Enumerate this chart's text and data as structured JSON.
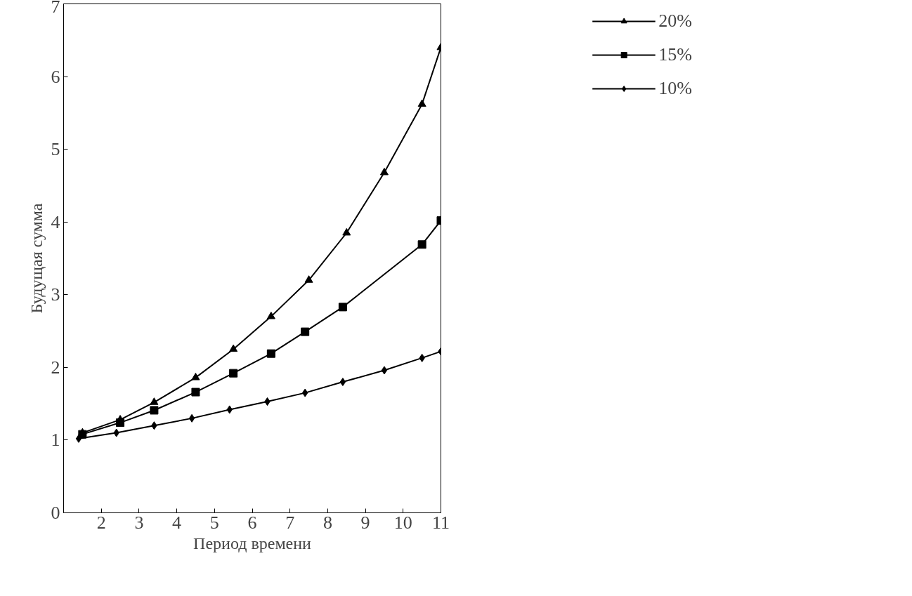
{
  "chart_data": {
    "type": "line",
    "xlabel": "Период времени",
    "ylabel": "Будущая сумма",
    "xlim": [
      1,
      11
    ],
    "ylim": [
      0,
      7
    ],
    "xticks": [
      2,
      3,
      4,
      5,
      6,
      7,
      8,
      9,
      10,
      11
    ],
    "yticks": [
      0,
      1,
      2,
      3,
      4,
      5,
      6,
      7
    ],
    "grid": false,
    "legend": "right",
    "series": [
      {
        "name": "20%",
        "color": "#000000",
        "marker": "triangle",
        "x": [
          1.5,
          2.5,
          3.4,
          4.5,
          5.5,
          6.5,
          7.5,
          8.5,
          9.5,
          10.5,
          11
        ],
        "values": [
          1.1,
          1.28,
          1.52,
          1.86,
          2.25,
          2.7,
          3.2,
          3.85,
          4.68,
          5.62,
          6.4
        ]
      },
      {
        "name": "15%",
        "color": "#000000",
        "marker": "square",
        "x": [
          1.5,
          2.5,
          3.4,
          4.5,
          5.5,
          6.5,
          7.4,
          8.4,
          10.5,
          11
        ],
        "values": [
          1.08,
          1.24,
          1.41,
          1.66,
          1.92,
          2.19,
          2.49,
          2.83,
          3.69,
          4.02
        ]
      },
      {
        "name": "10%",
        "color": "#000000",
        "marker": "diamond",
        "x": [
          1.4,
          2.4,
          3.4,
          4.4,
          5.4,
          6.4,
          7.4,
          8.4,
          9.5,
          10.5,
          11
        ],
        "values": [
          1.02,
          1.1,
          1.2,
          1.3,
          1.42,
          1.53,
          1.65,
          1.8,
          1.96,
          2.13,
          2.22
        ]
      }
    ]
  }
}
